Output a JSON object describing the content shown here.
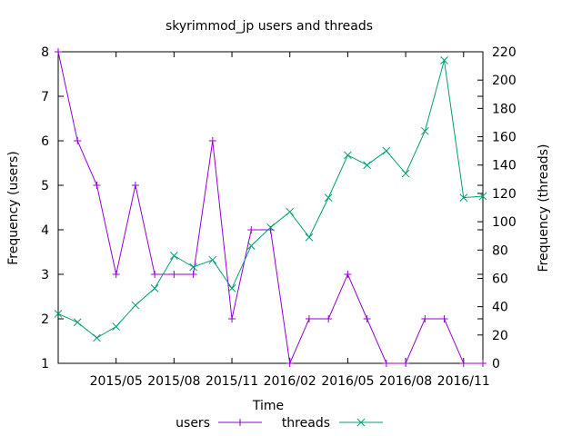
{
  "chart_data": {
    "type": "line",
    "title": "skyrimmod_jp users and threads",
    "xlabel": "Time",
    "ylabel": "Frequency (users)",
    "y2label": "Frequency (threads)",
    "x_ticks": [
      "2015/05",
      "2015/08",
      "2015/11",
      "2016/02",
      "2016/05",
      "2016/08",
      "2016/11"
    ],
    "x": [
      "2015/02",
      "2015/03",
      "2015/04",
      "2015/05",
      "2015/06",
      "2015/07",
      "2015/08",
      "2015/09",
      "2015/10",
      "2015/11",
      "2015/12",
      "2016/01",
      "2016/02",
      "2016/03",
      "2016/04",
      "2016/05",
      "2016/06",
      "2016/07",
      "2016/08",
      "2016/09",
      "2016/10",
      "2016/11",
      "2016/12"
    ],
    "ylim": [
      1,
      8
    ],
    "y_ticks": [
      1,
      2,
      3,
      4,
      5,
      6,
      7,
      8
    ],
    "y2lim": [
      0,
      220
    ],
    "y2_ticks": [
      0,
      20,
      40,
      60,
      80,
      100,
      120,
      140,
      160,
      180,
      200,
      220
    ],
    "grid": false,
    "legend_position": "bottom",
    "series": [
      {
        "name": "users",
        "axis": "left",
        "color": "#9400d3",
        "marker": "plus",
        "values": [
          8,
          6,
          5,
          3,
          5,
          3,
          3,
          3,
          6,
          2,
          4,
          4,
          1,
          2,
          2,
          3,
          2,
          1,
          1,
          2,
          2,
          1,
          1
        ]
      },
      {
        "name": "threads",
        "axis": "right",
        "color": "#009e73",
        "marker": "cross",
        "values": [
          35,
          29,
          18,
          26,
          41,
          53,
          76,
          68,
          73,
          53,
          83,
          96,
          107,
          89,
          117,
          147,
          140,
          150,
          134,
          164,
          214,
          117,
          118
        ]
      }
    ]
  }
}
